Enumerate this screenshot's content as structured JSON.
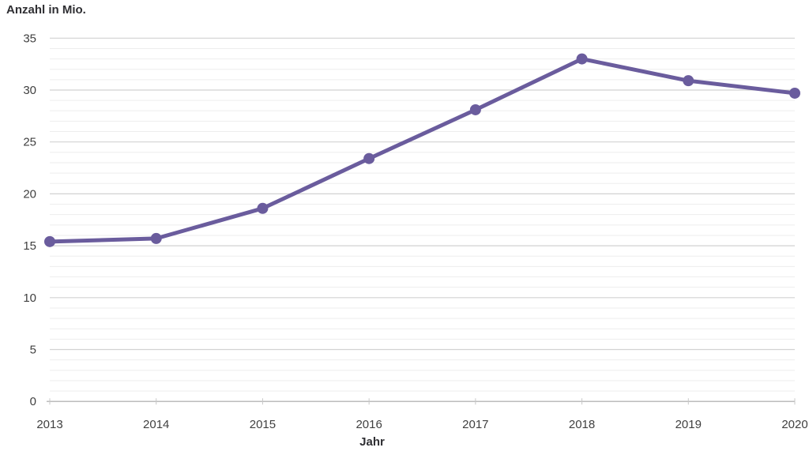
{
  "chart_data": {
    "type": "line",
    "title": "Anzahl in Mio.",
    "xlabel": "Jahr",
    "ylabel": "Anzahl in Mio.",
    "categories": [
      "2013",
      "2014",
      "2015",
      "2016",
      "2017",
      "2018",
      "2019",
      "2020"
    ],
    "series": [
      {
        "name": "Anzahl in Mio.",
        "values": [
          15.4,
          15.7,
          18.6,
          23.4,
          28.1,
          33.0,
          30.9,
          29.7
        ]
      }
    ],
    "ylim": [
      0,
      35
    ],
    "y_major_step": 5,
    "y_minor_step": 1,
    "y_tick_labels": [
      "0",
      "5",
      "10",
      "15",
      "20",
      "25",
      "30",
      "35"
    ],
    "grid": "horizontal",
    "legend": "none",
    "colors": {
      "line": "#6a5c9d",
      "point": "#6a5c9d",
      "grid_major": "#d2d2d2",
      "grid_minor": "#ededed",
      "axis": "#b4b4b4",
      "tick": "#c8c8c8",
      "tick_label": "#404040",
      "title": "#2f2f33",
      "background": "#ffffff"
    }
  }
}
